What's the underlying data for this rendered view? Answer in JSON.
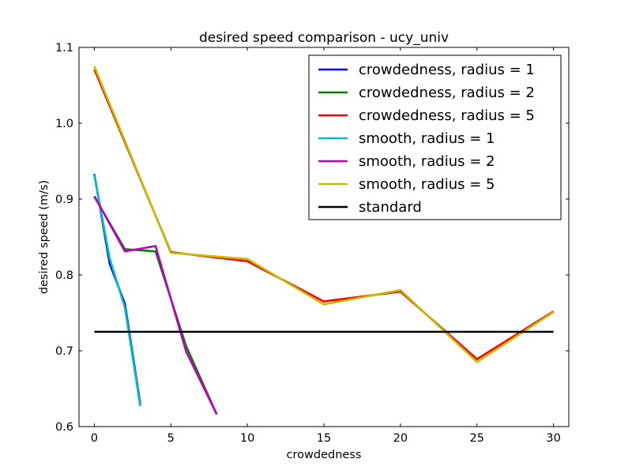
{
  "chart_data": {
    "type": "line",
    "title": "desired speed comparison - ucy_univ",
    "xlabel": "crowdedness",
    "ylabel": "desired speed (m/s)",
    "xlim": [
      -1,
      31
    ],
    "ylim": [
      0.6,
      1.1
    ],
    "x_ticks": [
      0,
      5,
      10,
      15,
      20,
      25,
      30
    ],
    "x_tick_labels": [
      "0",
      "5",
      "10",
      "15",
      "20",
      "25",
      "30"
    ],
    "y_ticks": [
      0.6,
      0.7,
      0.8,
      0.9,
      1.0,
      1.1
    ],
    "y_tick_labels": [
      "0.6",
      "0.7",
      "0.8",
      "0.9",
      "1.0",
      "1.1"
    ],
    "grid": false,
    "legend_position": "top-right",
    "series": [
      {
        "name": "crowdedness, radius = 1",
        "color": "#0000ff",
        "x": [
          0,
          1,
          2,
          3
        ],
        "values": [
          0.933,
          0.815,
          0.762,
          0.63
        ]
      },
      {
        "name": "crowdedness, radius = 2",
        "color": "#008000",
        "x": [
          0,
          2,
          4,
          6,
          8
        ],
        "values": [
          0.903,
          0.834,
          0.831,
          0.706,
          0.616
        ]
      },
      {
        "name": "crowdedness, radius = 5",
        "color": "#ff0000",
        "x": [
          0,
          5,
          10,
          15,
          20,
          25,
          30
        ],
        "values": [
          1.071,
          0.83,
          0.818,
          0.765,
          0.778,
          0.689,
          0.752
        ]
      },
      {
        "name": "smooth, radius = 1",
        "color": "#00bfbf",
        "x": [
          0,
          1,
          2,
          3
        ],
        "values": [
          0.932,
          0.822,
          0.757,
          0.627
        ]
      },
      {
        "name": "smooth, radius = 2",
        "color": "#bf00bf",
        "x": [
          0,
          2,
          4,
          6,
          8
        ],
        "values": [
          0.904,
          0.831,
          0.838,
          0.699,
          0.616
        ]
      },
      {
        "name": "smooth, radius = 5",
        "color": "#bfbf00",
        "x": [
          0,
          5,
          10,
          15,
          20,
          25,
          30
        ],
        "values": [
          1.075,
          0.829,
          0.821,
          0.761,
          0.78,
          0.685,
          0.751
        ]
      },
      {
        "name": "standard",
        "color": "#000000",
        "x": [
          0,
          30
        ],
        "values": [
          0.725,
          0.725
        ]
      }
    ]
  }
}
